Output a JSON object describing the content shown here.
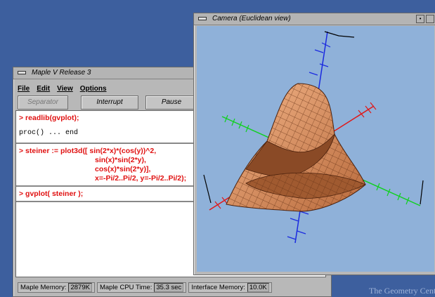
{
  "desktop": {
    "watermark": "The Geometry Cent"
  },
  "maple_window": {
    "title": "Maple V Release 3",
    "menu": [
      "File",
      "Edit",
      "View",
      "Options"
    ],
    "toolbar": [
      "Separator",
      "Interrupt",
      "Pause"
    ],
    "worksheet": {
      "regions": [
        {
          "input": [
            "> readlib(gvplot);"
          ],
          "output": [
            "proc() ... end"
          ]
        },
        {
          "input": [
            "> steiner := plot3d([ sin(2*x)*(cos(y))^2,",
            "sin(x)*sin(2*y),",
            "cos(x)*sin(2*y)],",
            "x=-Pi/2..Pi/2, y=-Pi/2..Pi/2);"
          ]
        },
        {
          "input": [
            "> gvplot( steiner );"
          ]
        }
      ]
    },
    "status": [
      {
        "label": "Maple Memory:",
        "value": "2879K"
      },
      {
        "label": "Maple CPU Time:",
        "value": "35.3 sec"
      },
      {
        "label": "Interface Memory:",
        "value": "10.0K"
      }
    ]
  },
  "camera_window": {
    "title": "Camera (Euclidean view)"
  }
}
